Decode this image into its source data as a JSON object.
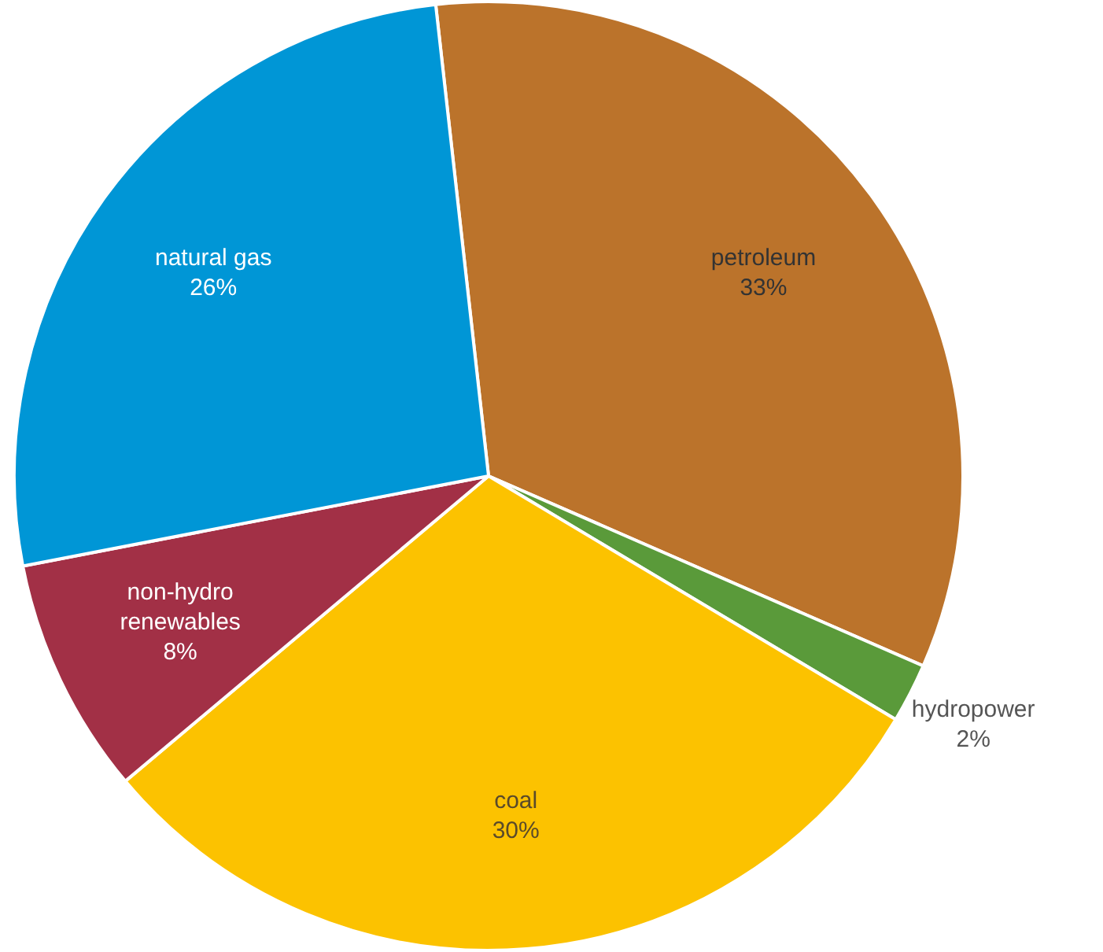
{
  "chart_data": {
    "type": "pie",
    "categories": [
      "petroleum",
      "hydropower",
      "coal",
      "non-hydro renewables",
      "natural gas"
    ],
    "values": [
      33,
      2,
      30,
      8,
      26
    ],
    "colors": [
      "#bb732b",
      "#5a9a3a",
      "#fcc200",
      "#a23046",
      "#0096d6"
    ],
    "value_labels": [
      "33%",
      "2%",
      "30%",
      "8%",
      "26%"
    ],
    "legend": false
  }
}
